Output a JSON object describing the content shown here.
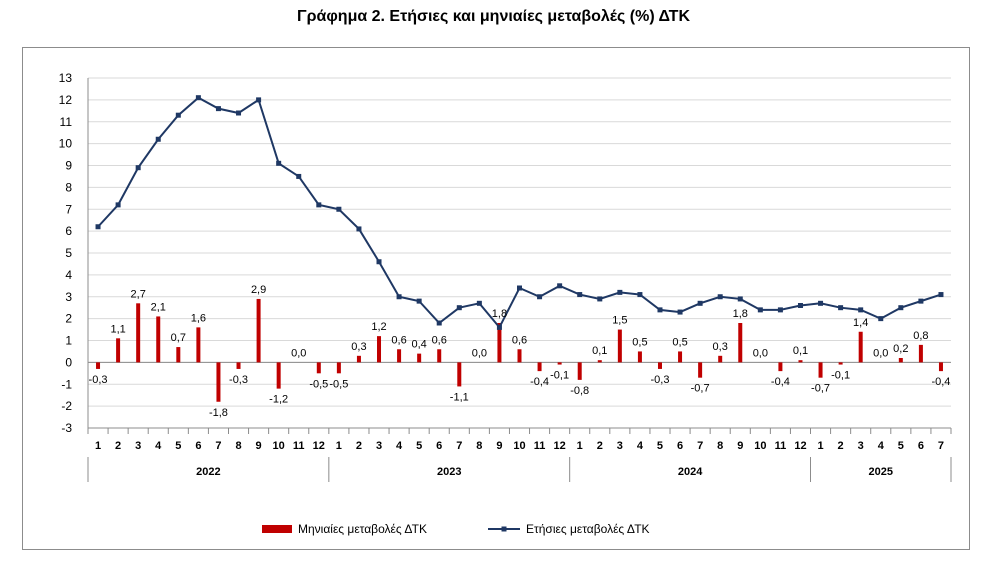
{
  "chart_data": {
    "type": "bar+line",
    "title": "Γράφημα 2. Ετήσιες και μηνιαίες μεταβολές (%) ΔΤΚ",
    "ylim": [
      -3,
      13
    ],
    "yticks": [
      13,
      12,
      11,
      10,
      9,
      8,
      7,
      6,
      5,
      4,
      3,
      2,
      1,
      0,
      -1,
      -2,
      -3
    ],
    "grid": true,
    "legend_position": "bottom",
    "months": [
      "1",
      "2",
      "3",
      "4",
      "5",
      "6",
      "7",
      "8",
      "9",
      "10",
      "11",
      "12",
      "1",
      "2",
      "3",
      "4",
      "5",
      "6",
      "7",
      "8",
      "9",
      "10",
      "11",
      "12",
      "1",
      "2",
      "3",
      "4",
      "5",
      "6",
      "7",
      "8",
      "9",
      "10",
      "11",
      "12",
      "1",
      "2",
      "3",
      "4",
      "5",
      "6",
      "7"
    ],
    "years": [
      {
        "label": "2022",
        "count": 12
      },
      {
        "label": "2023",
        "count": 12
      },
      {
        "label": "2024",
        "count": 12
      },
      {
        "label": "2025",
        "count": 7
      }
    ],
    "series": [
      {
        "name": "Μηνιαίες μεταβολές ΔΤΚ",
        "kind": "bar",
        "color": "#c00000",
        "values": [
          -0.3,
          1.1,
          2.7,
          2.1,
          0.7,
          1.6,
          -1.8,
          -0.3,
          2.9,
          -1.2,
          0.0,
          -0.5,
          -0.5,
          0.3,
          1.2,
          0.6,
          0.4,
          0.6,
          -1.1,
          0.0,
          1.8,
          0.6,
          -0.4,
          -0.1,
          -0.8,
          0.1,
          1.5,
          0.5,
          -0.3,
          0.5,
          -0.7,
          0.3,
          1.8,
          0.0,
          -0.4,
          0.1,
          -0.7,
          -0.1,
          1.4,
          0.0,
          0.2,
          0.8,
          -0.4
        ],
        "labels": [
          "-0,3",
          "1,1",
          "2,7",
          "2,1",
          "0,7",
          "1,6",
          "-1,8",
          "-0,3",
          "2,9",
          "-1,2",
          "0,0",
          "-0,5",
          "-0,5",
          "0,3",
          "1,2",
          "0,6",
          "0,4",
          "0,6",
          "-1,1",
          "0,0",
          "1,8",
          "0,6",
          "-0,4",
          "-0,1",
          "-0,8",
          "0,1",
          "1,5",
          "0,5",
          "-0,3",
          "0,5",
          "-0,7",
          "0,3",
          "1,8",
          "0,0",
          "-0,4",
          "0,1",
          "-0,7",
          "-0,1",
          "1,4",
          "0,0",
          "0,2",
          "0,8",
          "-0,4"
        ]
      },
      {
        "name": "Ετήσιες μεταβολές ΔΤΚ",
        "kind": "line",
        "color": "#1f3864",
        "values": [
          6.2,
          7.2,
          8.9,
          10.2,
          11.3,
          12.1,
          11.6,
          11.4,
          12.0,
          9.1,
          8.5,
          7.2,
          7.0,
          6.1,
          4.6,
          3.0,
          2.8,
          1.8,
          2.5,
          2.7,
          1.6,
          3.4,
          3.0,
          3.5,
          3.1,
          2.9,
          3.2,
          3.1,
          2.4,
          2.3,
          2.7,
          3.0,
          2.9,
          2.4,
          2.4,
          2.6,
          2.7,
          2.5,
          2.4,
          2.0,
          2.5,
          2.8,
          3.1
        ]
      }
    ]
  }
}
